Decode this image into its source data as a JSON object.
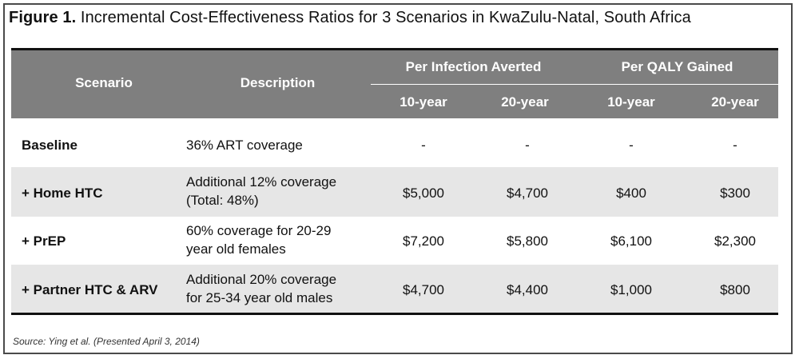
{
  "title": {
    "figure_label": "Figure 1.",
    "text": " Incremental Cost-Effectiveness Ratios for 3 Scenarios in KwaZulu-Natal, South Africa"
  },
  "table": {
    "headers": {
      "scenario": "Scenario",
      "description": "Description",
      "group_infection": "Per Infection Averted",
      "group_qaly": "Per QALY Gained",
      "sub": [
        "10-year",
        "20-year",
        "10-year",
        "20-year"
      ]
    },
    "rows": [
      {
        "scenario": "Baseline",
        "description": [
          "36% ART coverage"
        ],
        "values": [
          "-",
          "-",
          "-",
          "-"
        ]
      },
      {
        "scenario": "+ Home HTC",
        "description": [
          "Additional 12% coverage",
          "(Total: 48%)"
        ],
        "values": [
          "$5,000",
          "$4,700",
          "$400",
          "$300"
        ]
      },
      {
        "scenario": "+ PrEP",
        "description": [
          "60% coverage for 20-29",
          "year old females"
        ],
        "values": [
          "$7,200",
          "$5,800",
          "$6,100",
          "$2,300"
        ]
      },
      {
        "scenario": "+ Partner HTC & ARV",
        "description": [
          "Additional 20% coverage",
          "for 25-34 year old males"
        ],
        "values": [
          "$4,700",
          "$4,400",
          "$1,000",
          "$800"
        ]
      }
    ]
  },
  "source": "Source: Ying et al. (Presented April 3, 2014)",
  "colors": {
    "header_bg": "#7f7f7f",
    "band_bg": "#e6e6e6",
    "rule": "#111111"
  }
}
